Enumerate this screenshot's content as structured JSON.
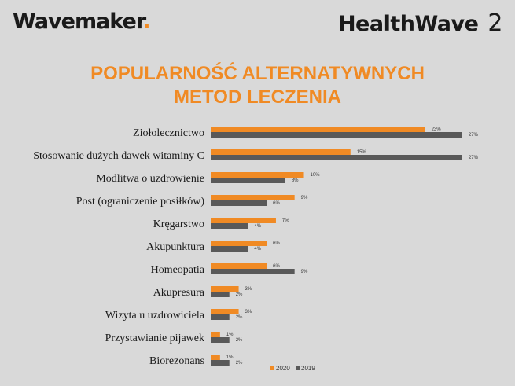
{
  "logos": {
    "left": "Wavemaker",
    "right_text": "HealthWave",
    "right_number": "2"
  },
  "colors": {
    "series_2020": "#f08a24",
    "series_2019": "#595959",
    "title": "#f08a24",
    "background": "#d9d9d9"
  },
  "chart_data": {
    "type": "bar",
    "orientation": "horizontal",
    "title_line1": "POPULARNOŚĆ ALTERNATYWNYCH",
    "title_line2": "METOD LECZENIA",
    "categories": [
      "Ziołolecznictwo",
      "Stosowanie dużych dawek witaminy C",
      "Modlitwa o uzdrowienie",
      "Post (ograniczenie posiłków)",
      "Kręgarstwo",
      "Akupunktura",
      "Homeopatia",
      "Akupresura",
      "Wizyta u uzdrowiciela",
      "Przystawianie pijawek",
      "Biorezonans"
    ],
    "series": [
      {
        "name": "2020",
        "values": [
          23,
          15,
          10,
          9,
          7,
          6,
          6,
          3,
          3,
          1,
          1
        ],
        "labels": [
          "23%",
          "15%",
          "10%",
          "9%",
          "7%",
          "6%",
          "6%",
          "3%",
          "3%",
          "1%",
          "1%"
        ]
      },
      {
        "name": "2019",
        "values": [
          27,
          27,
          8,
          6,
          4,
          4,
          9,
          2,
          2,
          2,
          2
        ],
        "labels": [
          "27%",
          "27%",
          "8%",
          "6%",
          "4%",
          "4%",
          "9%",
          "2%",
          "2%",
          "2%",
          "2%"
        ]
      }
    ],
    "unit": "%",
    "xlim": [
      0,
      27
    ],
    "grid": false,
    "legend_position": "bottom-right"
  }
}
